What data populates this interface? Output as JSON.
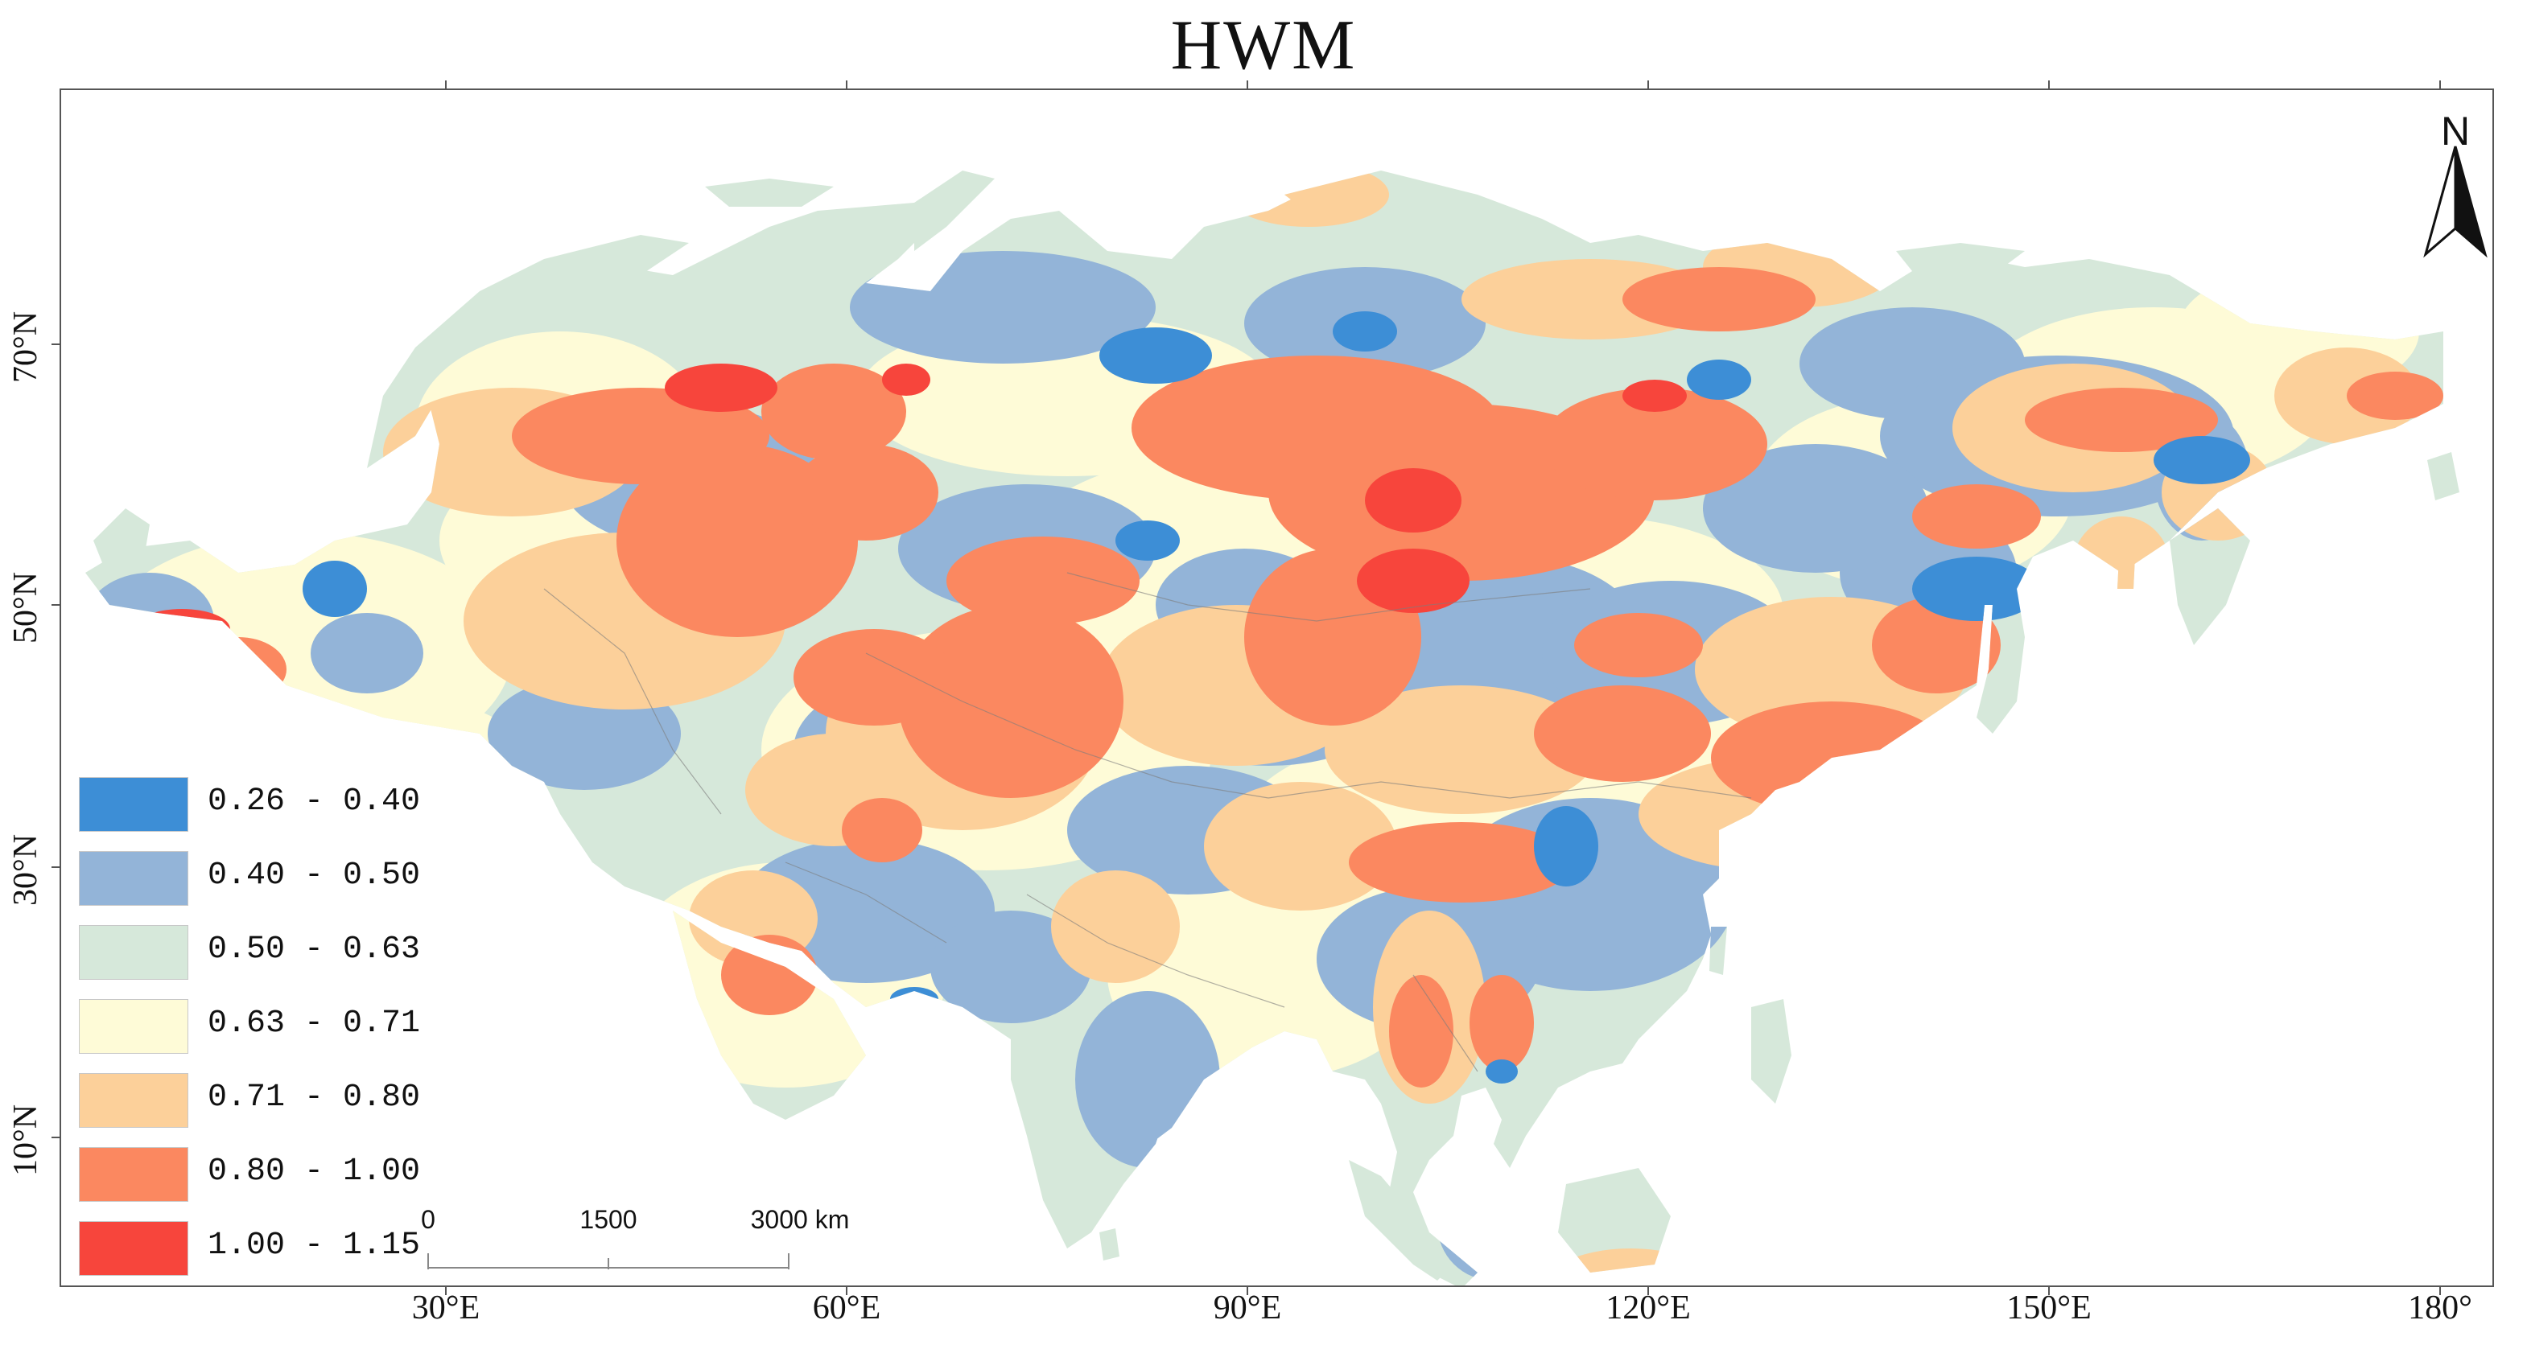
{
  "title": "HWM",
  "colors": {
    "frame": "#555555",
    "ocean": "#ffffff",
    "c1": "#3d8ed6",
    "c2": "#93b4d8",
    "c3": "#d6e8da",
    "c4": "#fefbd7",
    "c5": "#fcd09a",
    "c6": "#fb8860",
    "c7": "#f7453c"
  },
  "legend": [
    {
      "label": "0.26 - 0.40",
      "color": "#3d8ed6"
    },
    {
      "label": "0.40 - 0.50",
      "color": "#93b4d8"
    },
    {
      "label": "0.50 - 0.63",
      "color": "#d6e8da"
    },
    {
      "label": "0.63 - 0.71",
      "color": "#fefbd7"
    },
    {
      "label": "0.71 - 0.80",
      "color": "#fcd09a"
    },
    {
      "label": "0.80 - 1.00",
      "color": "#fb8860"
    },
    {
      "label": "1.00 - 1.15",
      "color": "#f7453c"
    }
  ],
  "axes": {
    "longitude_labels": [
      "30°E",
      "60°E",
      "90°E",
      "120°E",
      "150°E",
      "180°"
    ],
    "latitude_labels": [
      "70°N",
      "50°N",
      "30°N",
      "10°N"
    ]
  },
  "north_arrow": {
    "letter": "N",
    "icon": "north-arrow-icon"
  },
  "scale_bar": {
    "labels": [
      "0",
      "1500",
      "3000 km"
    ]
  }
}
